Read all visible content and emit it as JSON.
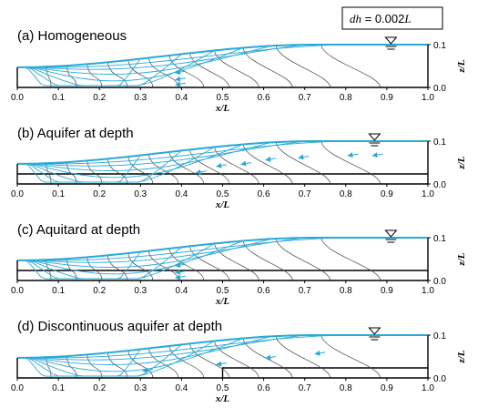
{
  "legend_box": {
    "label": "dh",
    "equals": " = 0.002",
    "unit": "L"
  },
  "x_axis": {
    "label": "x/L",
    "ticks": [
      "0.0",
      "0.1",
      "0.2",
      "0.3",
      "0.4",
      "0.5",
      "0.6",
      "0.7",
      "0.8",
      "0.9",
      "1.0"
    ]
  },
  "z_axis": {
    "label": "z/L",
    "ticks": [
      "0.0",
      "0.1"
    ]
  },
  "panels": [
    {
      "title": "(a) Homogeneous",
      "layer": "none"
    },
    {
      "title": "(b) Aquifer at depth",
      "layer": "aquifer"
    },
    {
      "title": "(c) Aquitard at depth",
      "layer": "aquitard"
    },
    {
      "title": "(d) Discontinuous aquifer at depth",
      "layer": "discontinuous"
    }
  ],
  "colors": {
    "flow": "#29a9d6",
    "equipotential": "#444444",
    "frame": "#000000"
  }
}
